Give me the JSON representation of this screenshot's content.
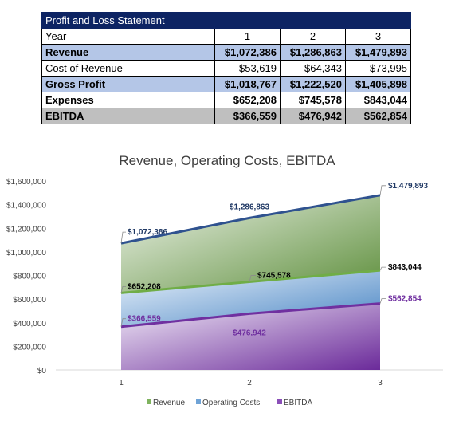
{
  "table": {
    "title": "Profit and Loss Statement",
    "header": {
      "label": "Year",
      "years": [
        "1",
        "2",
        "3"
      ]
    },
    "rows": [
      {
        "label": "Revenue",
        "values": [
          "$1,072,386",
          "$1,286,863",
          "$1,479,893"
        ],
        "style": "blue"
      },
      {
        "label": "Cost of Revenue",
        "values": [
          "$53,619",
          "$64,343",
          "$73,995"
        ],
        "style": "plain"
      },
      {
        "label": "Gross Profit",
        "values": [
          "$1,018,767",
          "$1,222,520",
          "$1,405,898"
        ],
        "style": "blue"
      },
      {
        "label": "Expenses",
        "values": [
          "$652,208",
          "$745,578",
          "$843,044"
        ],
        "style": "bold"
      },
      {
        "label": "EBITDA",
        "values": [
          "$366,559",
          "$476,942",
          "$562,854"
        ],
        "style": "gray"
      }
    ]
  },
  "chart_data": {
    "type": "area",
    "title": "Revenue, Operating Costs, EBITDA",
    "x": [
      "1",
      "2",
      "3"
    ],
    "ylim": [
      0,
      1600000
    ],
    "yticks": [
      "$0",
      "$200,000",
      "$400,000",
      "$600,000",
      "$800,000",
      "$1,000,000",
      "$1,200,000",
      "$1,400,000",
      "$1,600,000"
    ],
    "legend_position": "bottom",
    "series": [
      {
        "name": "Revenue",
        "values": [
          1072386,
          1286863,
          1479893
        ],
        "labels": [
          "$1,072,386",
          "$1,286,863",
          "$1,479,893"
        ],
        "line_color": "#2f528f",
        "fill_color": "#70ad47",
        "label_color": "#1f3864"
      },
      {
        "name": "Operating Costs",
        "values": [
          652208,
          745578,
          843044
        ],
        "labels": [
          "$652,208",
          "$745,578",
          "$843,044"
        ],
        "line_color": "#70ad47",
        "fill_color": "#5b9bd5",
        "label_color": "#000000"
      },
      {
        "name": "EBITDA",
        "values": [
          366559,
          476942,
          562854
        ],
        "labels": [
          "$366,559",
          "$476,942",
          "$562,854"
        ],
        "line_color": "#7030a0",
        "fill_color": "#7030a0",
        "label_color": "#7030a0"
      }
    ]
  }
}
